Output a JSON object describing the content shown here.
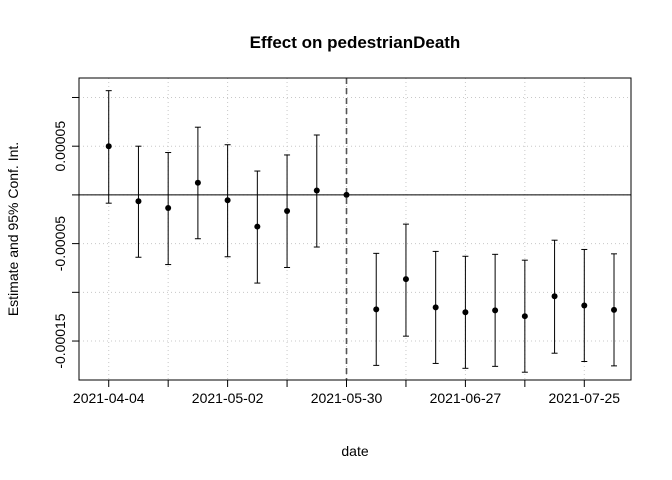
{
  "chart_data": {
    "type": "scatter",
    "title": "Effect on pedestrianDeath",
    "xlabel": "date",
    "ylabel": "Estimate and 95% Conf. Int.",
    "x_ticks": [
      "2021-04-04",
      "2021-05-02",
      "2021-05-30",
      "2021-06-27",
      "2021-07-25"
    ],
    "y_ticks": [
      5e-05,
      -5e-05,
      -0.00015
    ],
    "y_tick_labels": [
      "0.00005",
      "-0.00005",
      "-0.00015"
    ],
    "xlim": [
      "2021-03-28",
      "2021-08-05"
    ],
    "ylim": [
      -0.00019,
      0.00012
    ],
    "grid": true,
    "reference_line_y": 0,
    "event_line_x": "2021-05-30",
    "series": [
      {
        "points": [
          {
            "x": "2021-04-04",
            "y": 5e-05,
            "lo": -8.5e-06,
            "hi": 0.000107
          },
          {
            "x": "2021-04-11",
            "y": -6.5e-06,
            "lo": -6.4e-05,
            "hi": 5e-05
          },
          {
            "x": "2021-04-18",
            "y": -1.35e-05,
            "lo": -7.15e-05,
            "hi": 4.35e-05
          },
          {
            "x": "2021-04-25",
            "y": 1.25e-05,
            "lo": -4.5e-05,
            "hi": 6.95e-05
          },
          {
            "x": "2021-05-02",
            "y": -5.5e-06,
            "lo": -6.35e-05,
            "hi": 5.15e-05
          },
          {
            "x": "2021-05-09",
            "y": -3.25e-05,
            "lo": -9.05e-05,
            "hi": 2.45e-05
          },
          {
            "x": "2021-05-16",
            "y": -1.65e-05,
            "lo": -7.45e-05,
            "hi": 4.1e-05
          },
          {
            "x": "2021-05-23",
            "y": 4.5e-06,
            "lo": -5.35e-05,
            "hi": 6.15e-05
          },
          {
            "x": "2021-05-30",
            "y": 0.0,
            "lo": 0.0,
            "hi": 0.0
          },
          {
            "x": "2021-06-06",
            "y": -0.0001175,
            "lo": -0.000175,
            "hi": -6e-05
          },
          {
            "x": "2021-06-13",
            "y": -8.65e-05,
            "lo": -0.000145,
            "hi": -3e-05
          },
          {
            "x": "2021-06-20",
            "y": -0.0001155,
            "lo": -0.000173,
            "hi": -5.8e-05
          },
          {
            "x": "2021-06-27",
            "y": -0.0001205,
            "lo": -0.000178,
            "hi": -6.3e-05
          },
          {
            "x": "2021-07-04",
            "y": -0.0001185,
            "lo": -0.000176,
            "hi": -6.1e-05
          },
          {
            "x": "2021-07-11",
            "y": -0.0001245,
            "lo": -0.000182,
            "hi": -6.7e-05
          },
          {
            "x": "2021-07-18",
            "y": -0.000104,
            "lo": -0.0001625,
            "hi": -4.65e-05
          },
          {
            "x": "2021-07-25",
            "y": -0.0001135,
            "lo": -0.000171,
            "hi": -5.6e-05
          },
          {
            "x": "2021-08-01",
            "y": -0.000118,
            "lo": -0.0001755,
            "hi": -6.05e-05
          }
        ]
      }
    ]
  }
}
